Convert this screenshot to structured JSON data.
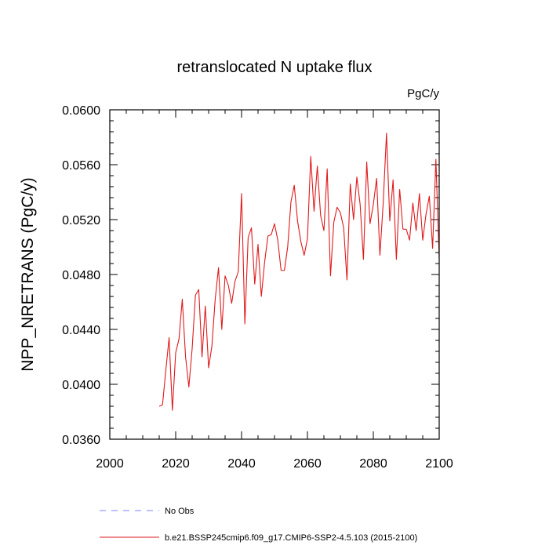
{
  "chart_data": {
    "type": "line",
    "title": "retranslocated N uptake flux",
    "units_label": "PgC/y",
    "xlabel": "",
    "ylabel": "NPP_NRETRANS  (PgC/y)",
    "xlim": [
      2000,
      2100
    ],
    "ylim": [
      0.036,
      0.06
    ],
    "x_ticks": [
      2000,
      2020,
      2040,
      2060,
      2080,
      2100
    ],
    "x_tick_labels": [
      "2000",
      "2020",
      "2040",
      "2060",
      "2080",
      "2100"
    ],
    "y_ticks": [
      0.036,
      0.04,
      0.044,
      0.048,
      0.052,
      0.056,
      0.06
    ],
    "y_tick_labels": [
      "0.0360",
      "0.0400",
      "0.0440",
      "0.0480",
      "0.0520",
      "0.0560",
      "0.0600"
    ],
    "grid": false,
    "legend_placement": "bottom",
    "series": [
      {
        "name": "b.e21.BSSP245cmip6.f09_g17.CMIP6-SSP2-4.5.103 (2015-2100)",
        "color": "#e0191b",
        "style": "solid",
        "x": [
          2015,
          2016,
          2017,
          2018,
          2019,
          2020,
          2021,
          2022,
          2023,
          2024,
          2025,
          2026,
          2027,
          2028,
          2029,
          2030,
          2031,
          2032,
          2033,
          2034,
          2035,
          2036,
          2037,
          2038,
          2039,
          2040,
          2041,
          2042,
          2043,
          2044,
          2045,
          2046,
          2047,
          2048,
          2049,
          2050,
          2051,
          2052,
          2053,
          2054,
          2055,
          2056,
          2057,
          2058,
          2059,
          2060,
          2061,
          2062,
          2063,
          2064,
          2065,
          2066,
          2067,
          2068,
          2069,
          2070,
          2071,
          2072,
          2073,
          2074,
          2075,
          2076,
          2077,
          2078,
          2079,
          2080,
          2081,
          2082,
          2083,
          2084,
          2085,
          2086,
          2087,
          2088,
          2089,
          2090,
          2091,
          2092,
          2093,
          2094,
          2095,
          2096,
          2097,
          2098,
          2099,
          2100
        ],
        "values": [
          0.0384,
          0.0385,
          0.041,
          0.0434,
          0.0381,
          0.0423,
          0.0433,
          0.0462,
          0.042,
          0.0398,
          0.0426,
          0.0465,
          0.0469,
          0.042,
          0.0457,
          0.0412,
          0.0428,
          0.0462,
          0.0485,
          0.044,
          0.0479,
          0.0472,
          0.0459,
          0.0475,
          0.0482,
          0.0539,
          0.0444,
          0.0507,
          0.0514,
          0.0473,
          0.0502,
          0.0464,
          0.0489,
          0.0508,
          0.0509,
          0.0517,
          0.0505,
          0.0483,
          0.0483,
          0.05,
          0.0533,
          0.0545,
          0.0519,
          0.0504,
          0.0494,
          0.0506,
          0.0566,
          0.0526,
          0.0559,
          0.0523,
          0.0512,
          0.0557,
          0.0479,
          0.0518,
          0.0529,
          0.0525,
          0.0514,
          0.0476,
          0.0546,
          0.052,
          0.0551,
          0.0531,
          0.0491,
          0.0562,
          0.0517,
          0.0531,
          0.055,
          0.0494,
          0.0532,
          0.0583,
          0.0519,
          0.0549,
          0.0491,
          0.0542,
          0.0513,
          0.0513,
          0.0505,
          0.0532,
          0.0512,
          0.0539,
          0.0505,
          0.0524,
          0.0537,
          0.0499,
          0.0564,
          0.0491
        ]
      },
      {
        "name": "No Obs",
        "color": "#8080ff",
        "style": "dashed",
        "x": [],
        "values": []
      }
    ]
  }
}
